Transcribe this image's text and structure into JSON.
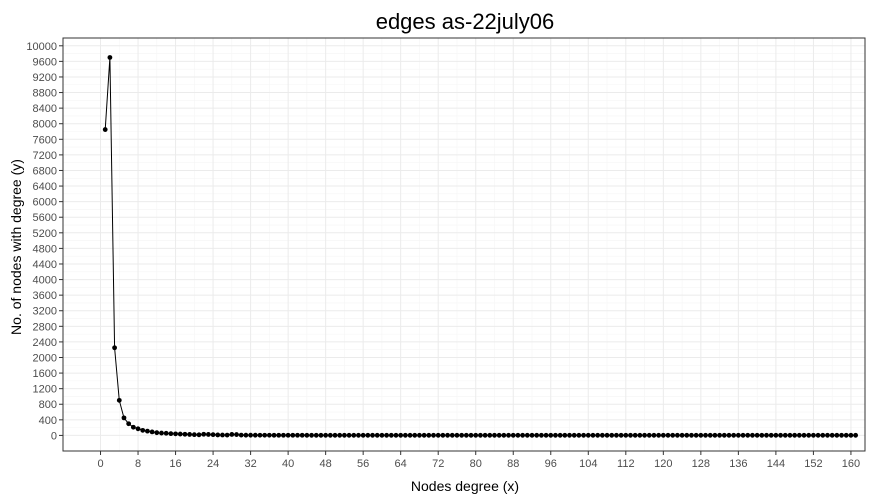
{
  "chart_data": {
    "type": "line",
    "title": "edges as-22july06",
    "xlabel": "Nodes degree (x)",
    "ylabel": "No. of nodes with degree (y)",
    "xlim": [
      -8,
      163
    ],
    "ylim": [
      -400,
      10200
    ],
    "xticks": [
      0,
      8,
      16,
      24,
      32,
      40,
      48,
      56,
      64,
      72,
      80,
      88,
      96,
      104,
      112,
      120,
      128,
      136,
      144,
      152,
      160
    ],
    "yticks": [
      0,
      400,
      800,
      1200,
      1600,
      2000,
      2400,
      2800,
      3200,
      3600,
      4000,
      4400,
      4800,
      5200,
      5600,
      6000,
      6400,
      6800,
      7200,
      7600,
      8000,
      8400,
      8800,
      9200,
      9600,
      10000
    ],
    "grid": true,
    "legend": "none",
    "colors": {
      "line": "#000000",
      "point": "#000000",
      "grid_major": "#ebebeb",
      "grid_minor": "#f5f5f5",
      "panel_border": "#333333",
      "tick_label": "#4d4d4d"
    },
    "series": [
      {
        "x": [
          1,
          2,
          3,
          4,
          5,
          6,
          7,
          8,
          9,
          10,
          11,
          12,
          13,
          14,
          15,
          16,
          17,
          18,
          19,
          20,
          21,
          22,
          23,
          24,
          25,
          26,
          27,
          28,
          29,
          30,
          31,
          32,
          33,
          34,
          35,
          36,
          37,
          38,
          39,
          40,
          41,
          42,
          43,
          44,
          45,
          46,
          47,
          48,
          49,
          50,
          51,
          52,
          53,
          54,
          55,
          56,
          57,
          58,
          59,
          60,
          61,
          62,
          63,
          64,
          65,
          66,
          67,
          68,
          69,
          70,
          71,
          72,
          73,
          74,
          75,
          76,
          77,
          78,
          79,
          80,
          81,
          82,
          83,
          84,
          85,
          86,
          87,
          88,
          89,
          90,
          91,
          92,
          93,
          94,
          95,
          96,
          97,
          98,
          99,
          100,
          101,
          102,
          103,
          104,
          105,
          106,
          107,
          108,
          109,
          110,
          111,
          112,
          113,
          114,
          115,
          116,
          117,
          118,
          119,
          120,
          121,
          122,
          123,
          124,
          125,
          126,
          127,
          128,
          129,
          130,
          131,
          132,
          133,
          134,
          135,
          136,
          137,
          138,
          139,
          140,
          141,
          142,
          143,
          144,
          145,
          146,
          147,
          148,
          149,
          150,
          151,
          152,
          153,
          154,
          155,
          156,
          157,
          158,
          159,
          160,
          161
        ],
        "y": [
          7850,
          9700,
          2250,
          900,
          450,
          300,
          210,
          170,
          130,
          110,
          90,
          70,
          60,
          55,
          45,
          40,
          35,
          30,
          25,
          20,
          15,
          30,
          25,
          20,
          12,
          10,
          8,
          25,
          22,
          8,
          6,
          6,
          6,
          5,
          5,
          5,
          4,
          4,
          4,
          4,
          4,
          4,
          4,
          3,
          3,
          3,
          3,
          3,
          3,
          3,
          3,
          3,
          3,
          3,
          3,
          3,
          3,
          3,
          3,
          3,
          3,
          3,
          3,
          3,
          3,
          3,
          3,
          3,
          3,
          3,
          3,
          3,
          3,
          3,
          3,
          3,
          3,
          3,
          3,
          3,
          3,
          3,
          3,
          3,
          3,
          3,
          3,
          3,
          3,
          3,
          3,
          3,
          3,
          3,
          3,
          3,
          3,
          3,
          3,
          3,
          3,
          3,
          3,
          3,
          3,
          3,
          3,
          3,
          3,
          3,
          3,
          3,
          3,
          3,
          3,
          3,
          3,
          3,
          3,
          3,
          3,
          3,
          3,
          3,
          3,
          3,
          3,
          3,
          3,
          3,
          3,
          3,
          3,
          3,
          3,
          3,
          3,
          3,
          3,
          3,
          3,
          3,
          3,
          3,
          3,
          3,
          3,
          3,
          3,
          3,
          3,
          3,
          3,
          3,
          3,
          3,
          3,
          3,
          3,
          3,
          3
        ]
      }
    ]
  }
}
